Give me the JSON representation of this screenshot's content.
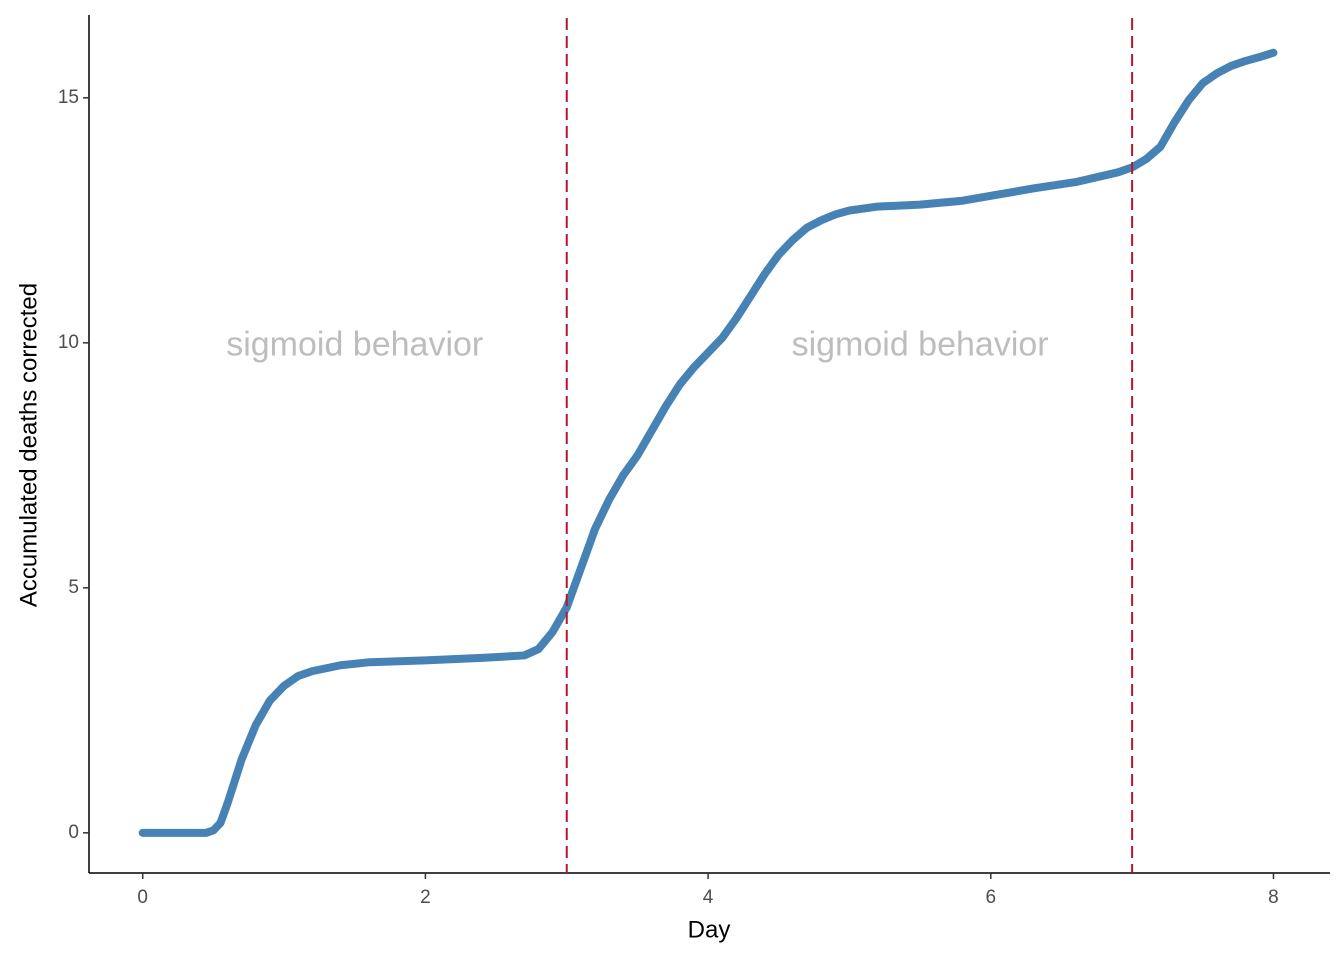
{
  "chart_data": {
    "type": "line",
    "x_label": "Day",
    "y_label": "Accumulated deaths corrected",
    "x": [
      0,
      0.45,
      0.5,
      0.55,
      0.6,
      0.7,
      0.8,
      0.9,
      1.0,
      1.1,
      1.2,
      1.4,
      1.6,
      2.0,
      2.4,
      2.7,
      2.8,
      2.9,
      3.0,
      3.1,
      3.2,
      3.3,
      3.4,
      3.5,
      3.6,
      3.7,
      3.8,
      3.9,
      4.0,
      4.1,
      4.2,
      4.3,
      4.4,
      4.5,
      4.6,
      4.7,
      4.8,
      4.9,
      5.0,
      5.2,
      5.5,
      5.8,
      6.0,
      6.3,
      6.6,
      6.9,
      7.0,
      7.1,
      7.2,
      7.3,
      7.4,
      7.5,
      7.6,
      7.7,
      7.8,
      7.9,
      8.0
    ],
    "series": [
      {
        "color": "#4682b4",
        "values": [
          0,
          0,
          0.05,
          0.2,
          0.6,
          1.5,
          2.2,
          2.7,
          3.0,
          3.2,
          3.3,
          3.42,
          3.48,
          3.52,
          3.57,
          3.62,
          3.75,
          4.1,
          4.6,
          5.4,
          6.2,
          6.8,
          7.3,
          7.7,
          8.2,
          8.7,
          9.15,
          9.5,
          9.8,
          10.1,
          10.5,
          10.95,
          11.4,
          11.8,
          12.1,
          12.35,
          12.5,
          12.62,
          12.7,
          12.78,
          12.82,
          12.9,
          13.0,
          13.15,
          13.28,
          13.48,
          13.58,
          13.75,
          14.0,
          14.5,
          14.95,
          15.3,
          15.5,
          15.65,
          15.75,
          15.83,
          15.92
        ]
      }
    ],
    "xlim": [
      -0.38,
      8.4
    ],
    "xticks": [
      0,
      2,
      4,
      6,
      8
    ],
    "ylim": [
      -0.82,
      16.69
    ],
    "yticks": [
      0,
      5,
      10,
      15
    ],
    "vlines": [
      3,
      7
    ],
    "vline_color": "#b2182b",
    "annotations": [
      {
        "text": "sigmoid behavior",
        "x": 1.5,
        "y": 9.92
      },
      {
        "text": "sigmoid behavior",
        "x": 5.5,
        "y": 9.92
      }
    ],
    "grid": false
  }
}
